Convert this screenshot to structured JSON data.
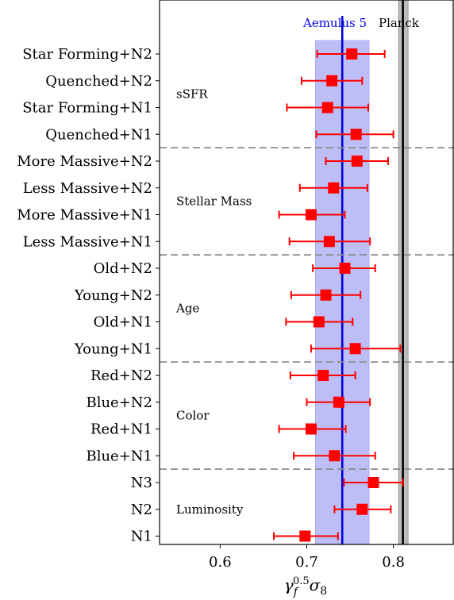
{
  "chart_data": {
    "type": "errorbar",
    "categories": [
      "Star Forming+N2",
      "Quenched+N2",
      "Star Forming+N1",
      "Quenched+N1",
      "More Massive+N2",
      "Less Massive+N2",
      "More Massive+N1",
      "Less Massive+N1",
      "Old+N2",
      "Young+N2",
      "Old+N1",
      "Young+N1",
      "Red+N2",
      "Blue+N2",
      "Red+N1",
      "Blue+N1",
      "N3",
      "N2",
      "N1"
    ],
    "values": [
      0.752,
      0.729,
      0.724,
      0.757,
      0.758,
      0.731,
      0.705,
      0.726,
      0.744,
      0.722,
      0.714,
      0.756,
      0.719,
      0.737,
      0.705,
      0.732,
      0.777,
      0.764,
      0.698
    ],
    "err_low": [
      0.712,
      0.694,
      0.677,
      0.711,
      0.722,
      0.692,
      0.668,
      0.68,
      0.707,
      0.682,
      0.676,
      0.705,
      0.681,
      0.7,
      0.668,
      0.685,
      0.743,
      0.732,
      0.662
    ],
    "err_high": [
      0.79,
      0.764,
      0.771,
      0.8,
      0.794,
      0.77,
      0.744,
      0.773,
      0.779,
      0.762,
      0.753,
      0.808,
      0.756,
      0.773,
      0.745,
      0.779,
      0.811,
      0.797,
      0.736
    ],
    "groups": [
      {
        "label": "sSFR",
        "rows": [
          0,
          3
        ]
      },
      {
        "label": "Stellar Mass",
        "rows": [
          4,
          7
        ]
      },
      {
        "label": "Age",
        "rows": [
          8,
          11
        ]
      },
      {
        "label": "Color",
        "rows": [
          12,
          15
        ]
      },
      {
        "label": "Luminosity",
        "rows": [
          16,
          18
        ]
      }
    ],
    "bands": [
      {
        "name": "Aemulus 5",
        "center": 0.741,
        "low": 0.71,
        "high": 0.772,
        "color": "#0000dd",
        "band_color": "#b3b3f5"
      },
      {
        "name": "Planck",
        "center": 0.811,
        "low": 0.806,
        "high": 0.817,
        "color": "#000000",
        "band_color": "#bdbdbd"
      }
    ],
    "xlim": [
      0.53,
      0.87
    ],
    "xticks": [
      "0.6",
      "0.7",
      "0.8"
    ],
    "xtick_values": [
      0.6,
      0.7,
      0.8
    ],
    "xlabel": "γf0.5σ8",
    "point_color": "#ff0000",
    "separator_color": "#8c8c8c"
  }
}
